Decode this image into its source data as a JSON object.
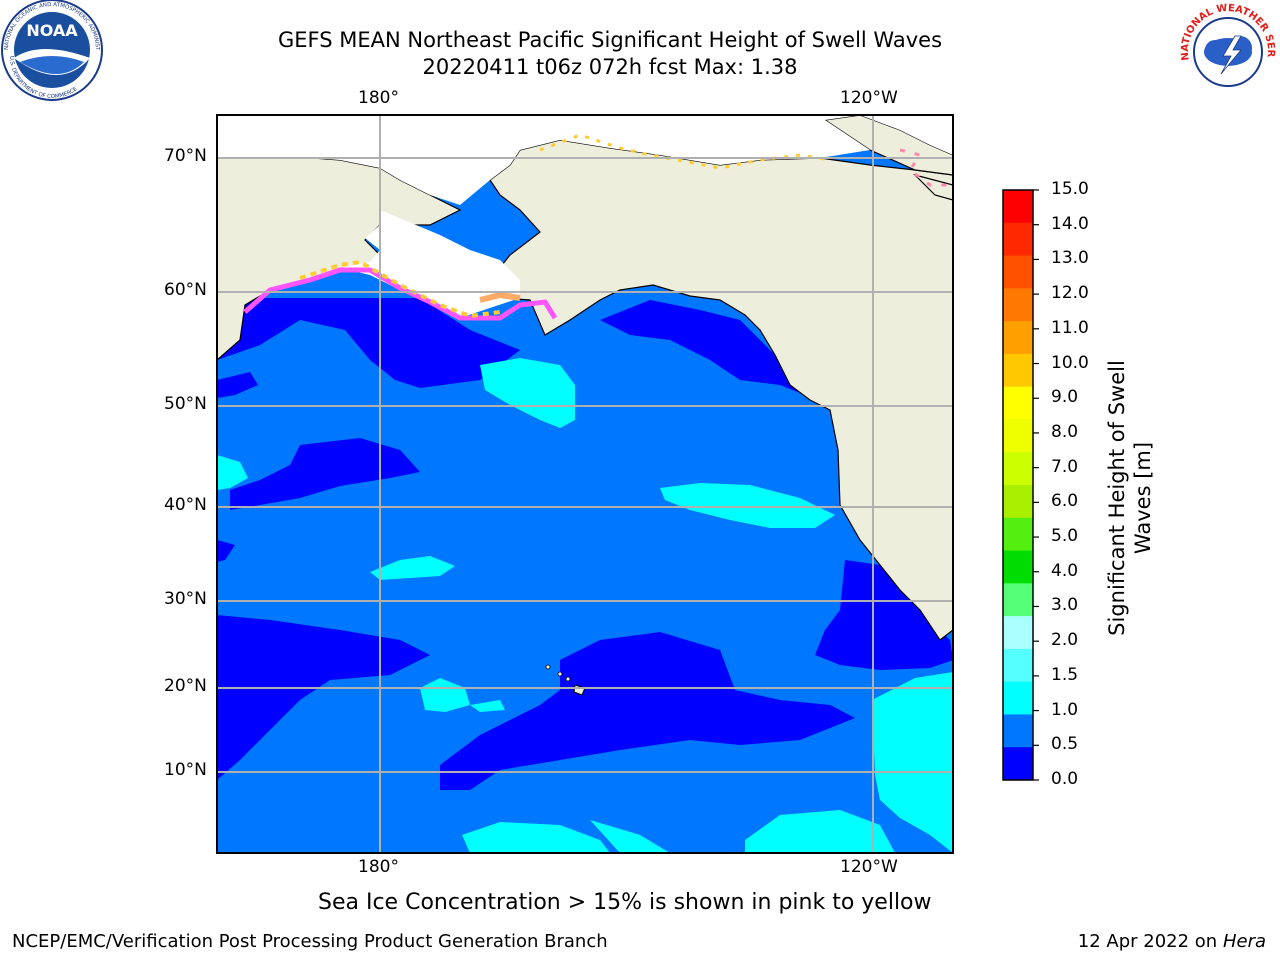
{
  "title": {
    "line1": "GEFS MEAN Northeast Pacific Significant Height of Swell Waves",
    "line2": "20220411 t06z 072h fcst    Max: 1.38"
  },
  "map": {
    "top_lon_labels": [
      "180°",
      "120°W"
    ],
    "bottom_lon_labels": [
      "180°",
      "120°W"
    ],
    "lat_labels": [
      "70°N",
      "60°N",
      "50°N",
      "40°N",
      "30°N",
      "20°N",
      "10°N"
    ],
    "colors": {
      "ocean_low": "#0000ff",
      "ocean_mid": "#0077ff",
      "ocean_high": "#00ffff",
      "land": "#eeeedd",
      "ice_white": "#ffffff",
      "ice_pink": "#ff55ff",
      "ice_yellow": "#ffcc33"
    }
  },
  "colorbar": {
    "label_line1": "Significant Height of Swell",
    "label_line2": "Waves [m]",
    "ticks": [
      "15.0",
      "14.0",
      "13.0",
      "12.0",
      "11.0",
      "10.0",
      "9.0",
      "8.0",
      "7.0",
      "6.0",
      "5.0",
      "4.0",
      "3.0",
      "2.0",
      "1.5",
      "1.0",
      "0.5",
      "0.0"
    ],
    "bands": [
      "#ff0000",
      "#ff2800",
      "#ff5000",
      "#ff7800",
      "#ffa000",
      "#ffc800",
      "#ffff00",
      "#eeff00",
      "#ccff00",
      "#aaee00",
      "#55ee11",
      "#00dd00",
      "#55ff77",
      "#aaffff",
      "#55ffff",
      "#00ffff",
      "#0077ff",
      "#0000ff"
    ]
  },
  "note": "Sea Ice Concentration > 15% is shown in pink to yellow",
  "footer": {
    "left": "NCEP/EMC/Verification Post Processing Product Generation Branch",
    "right_date": "12 Apr 2022 on ",
    "right_machine": "Hera"
  },
  "logos": {
    "noaa_text": "NOAA",
    "noaa_ring_top": "NATIONAL OCEANIC AND ATMOSPHERIC ADMINISTRATION",
    "noaa_ring_bottom": "U.S. DEPARTMENT OF COMMERCE",
    "nws_ring": "NATIONAL WEATHER SERVICE"
  }
}
